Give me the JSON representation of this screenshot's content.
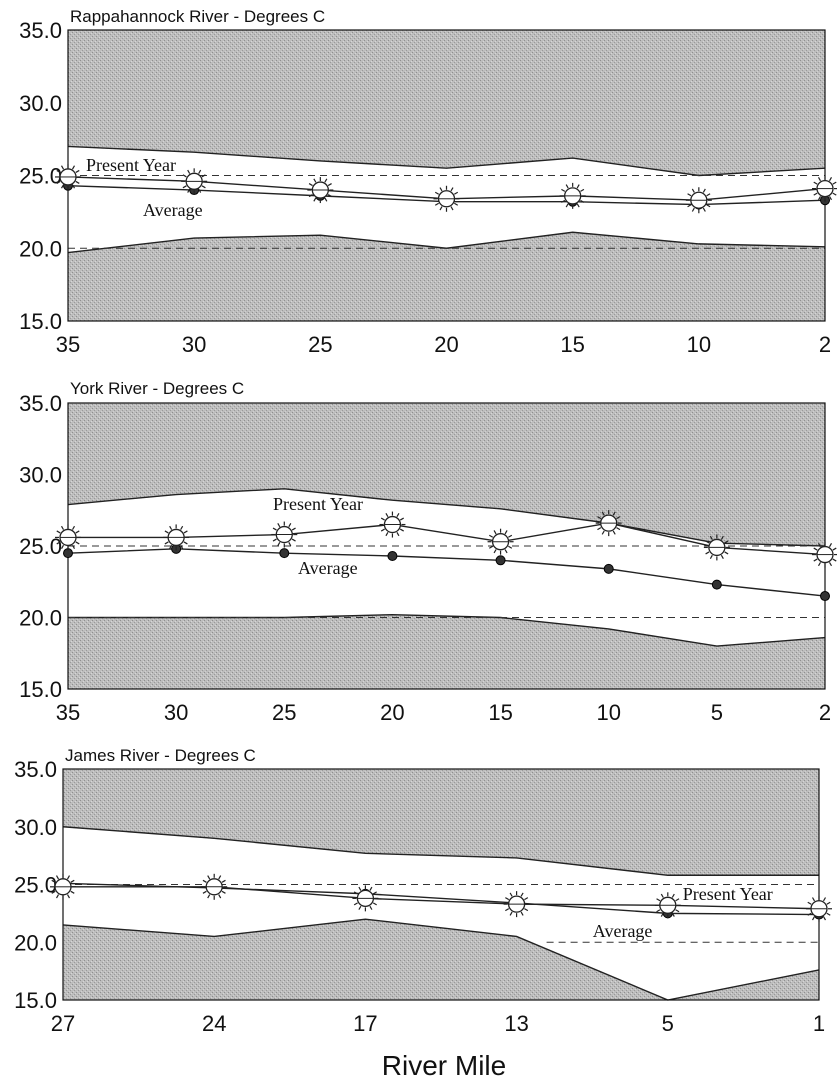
{
  "figure": {
    "xlabel": "River Mile",
    "colors": {
      "shaded_region": "#b9b9b9",
      "unshaded_band": "#ffffff",
      "line": "#222222",
      "dashed": "#333333"
    }
  },
  "chart_data": [
    {
      "type": "line",
      "title": "Rappahannock River - Degrees C",
      "categories": [
        "35",
        "30",
        "25",
        "20",
        "15",
        "10",
        "2"
      ],
      "ylim": [
        15,
        35
      ],
      "yticks": [
        "15.0",
        "20.0",
        "25.0",
        "30.0",
        "35.0"
      ],
      "series": [
        {
          "name": "Present Year",
          "marker": "sun-icon",
          "values": [
            24.9,
            24.6,
            24.0,
            23.4,
            23.6,
            23.3,
            24.1
          ]
        },
        {
          "name": "Average",
          "marker": "dot",
          "values": [
            24.3,
            24.0,
            23.6,
            23.2,
            23.2,
            23.0,
            23.3
          ]
        }
      ],
      "shaded_upper": [
        27.0,
        26.6,
        26.0,
        25.5,
        26.2,
        25.0,
        25.5
      ],
      "shaded_lower": [
        19.7,
        20.7,
        20.9,
        20.0,
        21.1,
        20.3,
        20.1
      ],
      "dashed_lines": [
        25.0,
        20.0
      ],
      "labels": {
        "present": "Present Year",
        "average": "Average"
      }
    },
    {
      "type": "line",
      "title": "York River - Degrees C",
      "categories": [
        "35",
        "30",
        "25",
        "20",
        "15",
        "10",
        "5",
        "2"
      ],
      "ylim": [
        15,
        35
      ],
      "yticks": [
        "15.0",
        "20.0",
        "25.0",
        "30.0",
        "35.0"
      ],
      "series": [
        {
          "name": "Present Year",
          "marker": "sun-icon",
          "values": [
            25.6,
            25.6,
            25.8,
            26.5,
            25.3,
            26.6,
            24.9,
            24.4
          ]
        },
        {
          "name": "Average",
          "marker": "dot",
          "values": [
            24.5,
            24.8,
            24.5,
            24.3,
            24.0,
            23.4,
            22.3,
            21.5
          ]
        }
      ],
      "shaded_upper": [
        27.9,
        28.6,
        29.0,
        28.2,
        27.6,
        26.6,
        25.2,
        25.0
      ],
      "shaded_lower": [
        20.0,
        20.0,
        20.0,
        20.2,
        20.0,
        19.2,
        18.0,
        18.6
      ],
      "dashed_lines": [
        25.0,
        20.0
      ],
      "labels": {
        "present": "Present Year",
        "average": "Average"
      }
    },
    {
      "type": "line",
      "title": "James River - Degrees C",
      "categories": [
        "27",
        "24",
        "17",
        "13",
        "5",
        "1"
      ],
      "ylim": [
        15,
        35
      ],
      "yticks": [
        "15.0",
        "20.0",
        "25.0",
        "30.0",
        "35.0"
      ],
      "series": [
        {
          "name": "Present Year",
          "marker": "sun-icon",
          "values": [
            24.8,
            24.8,
            23.8,
            23.3,
            23.2,
            22.9
          ]
        },
        {
          "name": "Average",
          "marker": "dot",
          "values": [
            25.1,
            24.7,
            24.2,
            23.4,
            22.5,
            22.4
          ]
        }
      ],
      "shaded_upper": [
        30.0,
        29.0,
        27.7,
        27.3,
        25.8,
        25.8
      ],
      "shaded_lower": [
        21.5,
        20.5,
        22.0,
        20.5,
        15.0,
        17.6
      ],
      "dashed_lines": [
        25.0,
        20.0
      ],
      "labels": {
        "present": "Present Year",
        "average": "Average"
      }
    }
  ]
}
